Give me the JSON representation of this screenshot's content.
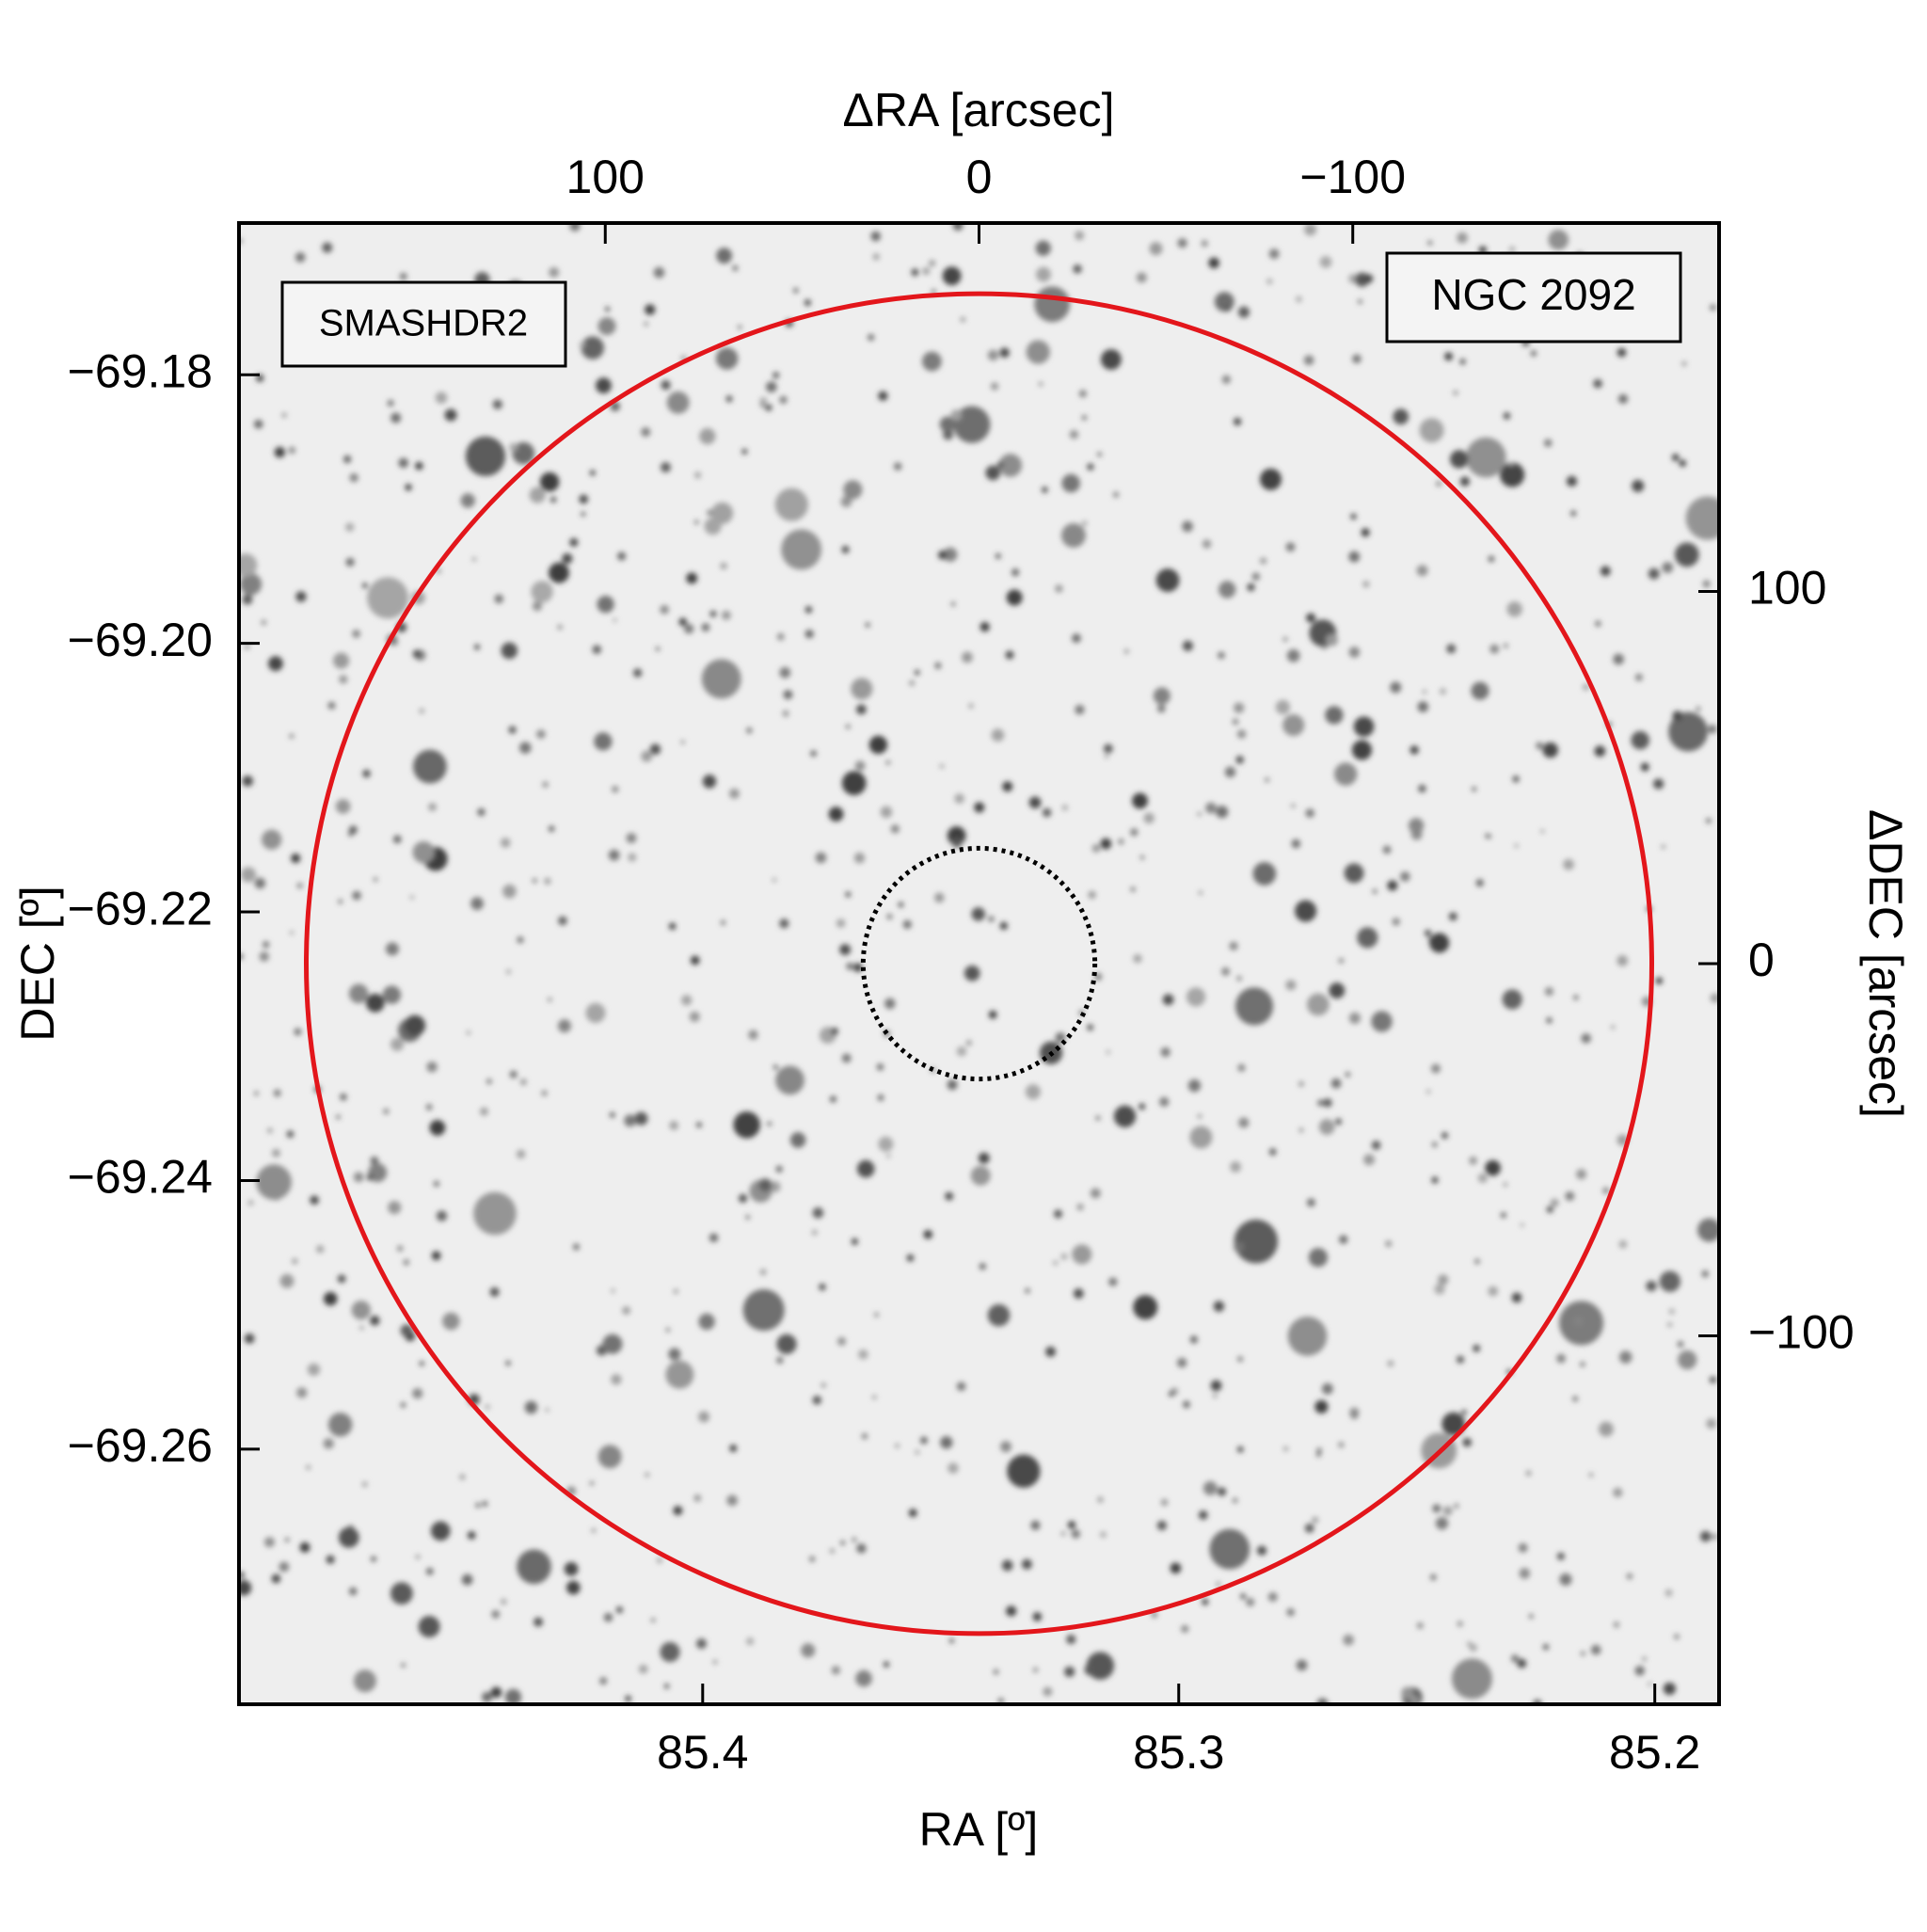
{
  "chart_data": {
    "type": "sky-image",
    "target_label": "NGC 2092",
    "survey_label": "SMASHDR2",
    "xlabel": "RA [º]",
    "ylabel": "DEC [º]",
    "x2label": "ΔRA [arcsec]",
    "y2label": "ΔDEC [arcsec]",
    "xlim": [
      85.4974,
      85.1865
    ],
    "ylim": [
      -69.279,
      -69.1687
    ],
    "xticks": [
      85.4,
      85.3,
      85.2
    ],
    "yticks": [
      {
        "value": -69.18,
        "label": "−69.18"
      },
      {
        "value": -69.2,
        "label": "−69.20"
      },
      {
        "value": -69.22,
        "label": "−69.22"
      },
      {
        "value": -69.24,
        "label": "−69.24"
      },
      {
        "value": -69.26,
        "label": "−69.26"
      }
    ],
    "x2lim": [
      198,
      -198
    ],
    "y2lim": [
      -199,
      199
    ],
    "x2ticks": [
      100,
      0,
      {
        "value": -100,
        "label": "−100"
      }
    ],
    "y2ticks": [
      100,
      0,
      {
        "value": -100,
        "label": "−100"
      }
    ],
    "circles": [
      {
        "center": [
          0,
          0
        ],
        "radius": 180,
        "color": "#e3161b",
        "style": "solid"
      },
      {
        "center": [
          0,
          0
        ],
        "radius": 31,
        "color": "#000000",
        "style": "dotted"
      }
    ],
    "survey_color": "#e3161b"
  }
}
